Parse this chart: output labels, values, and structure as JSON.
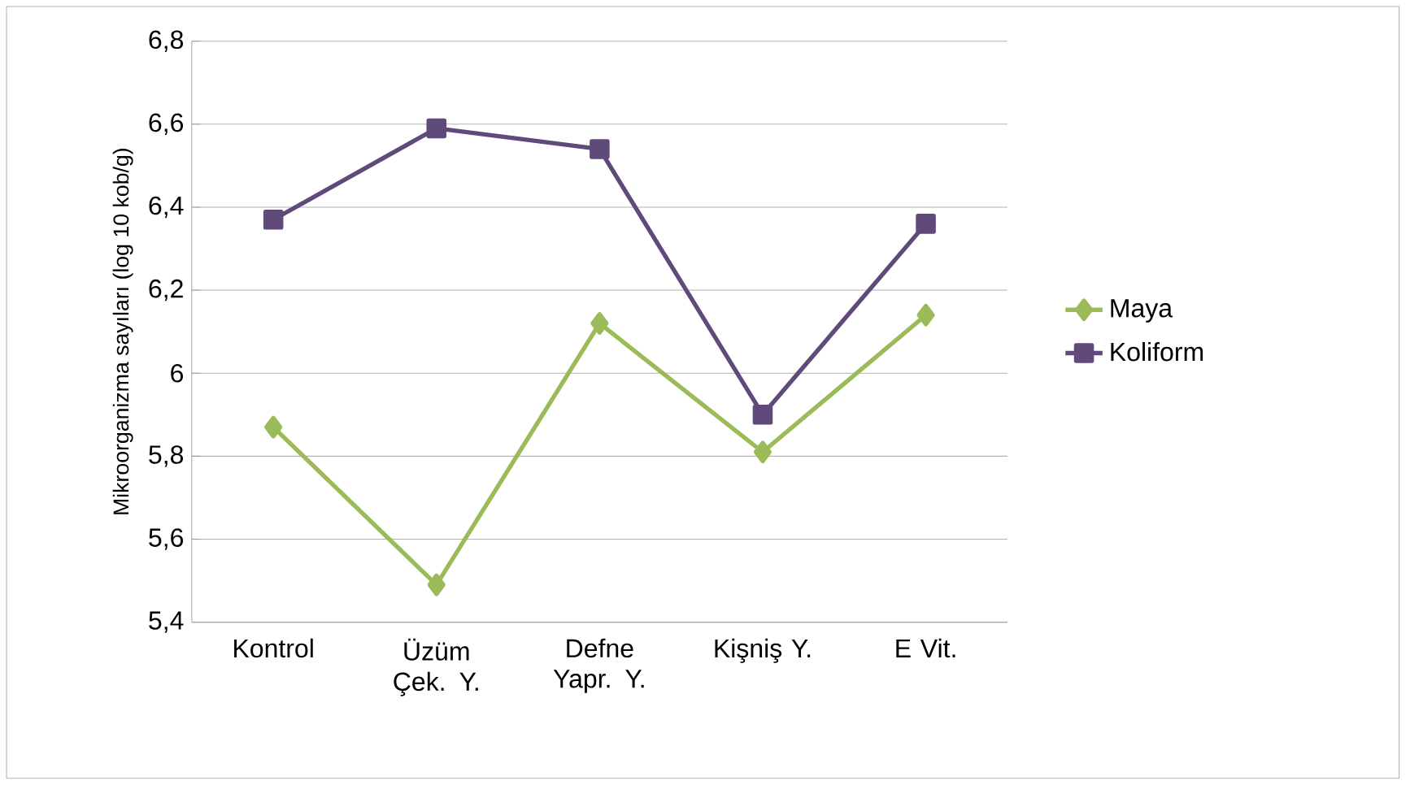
{
  "chart_data": {
    "type": "line",
    "ylabel": "Mikroorganizma sayıları (log 10 kob/g)",
    "categories": [
      "Kontrol",
      "Üzüm Çek. Y.",
      "Defne Yapr. Y.",
      "Kişniş Y.",
      "E Vit."
    ],
    "series": [
      {
        "name": "Maya",
        "color": "#9bbb59",
        "marker": "diamond",
        "values": [
          5.87,
          5.49,
          6.12,
          5.81,
          6.14
        ]
      },
      {
        "name": "Koliform",
        "color": "#604a7b",
        "marker": "square",
        "values": [
          6.37,
          6.59,
          6.54,
          5.9,
          6.36
        ]
      }
    ],
    "ylim": [
      5.4,
      6.8
    ],
    "yticks": [
      {
        "value": 5.4,
        "label": "5,4"
      },
      {
        "value": 5.6,
        "label": "5,6"
      },
      {
        "value": 5.8,
        "label": "5,8"
      },
      6,
      {
        "value": 6.2,
        "label": "6,2"
      },
      {
        "value": 6.4,
        "label": "6,4"
      },
      {
        "value": 6.6,
        "label": "6,6"
      },
      {
        "value": 6.8,
        "label": "6,8"
      }
    ],
    "grid": "y",
    "legend": "right"
  }
}
